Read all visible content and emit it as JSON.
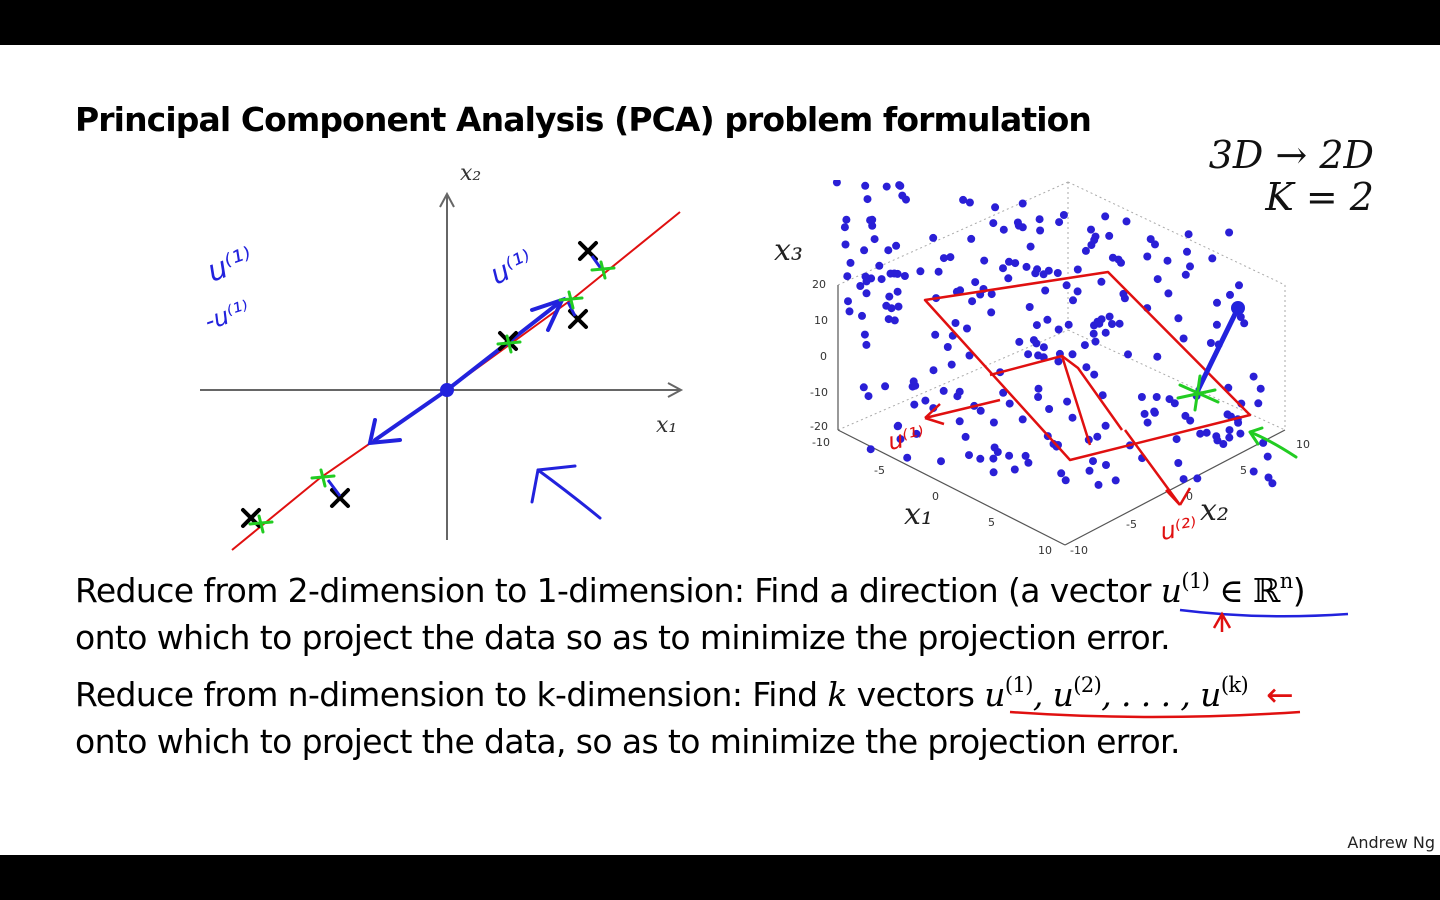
{
  "slide": {
    "title": "Principal Component Analysis (PCA) problem formulation",
    "math_top_right": [
      "3D → 2D",
      "K = 2"
    ],
    "left_plot": {
      "x_label": "x₁",
      "y_label": "x₂",
      "annotations": [
        "u⁽¹⁾",
        "-u⁽¹⁾",
        "u⁽¹⁾"
      ]
    },
    "right_plot": {
      "z_label": "x₃",
      "x_label": "x₁",
      "y_label": "x₂",
      "z_ticks": [
        "20",
        "10",
        "0",
        "-10",
        "-20"
      ],
      "x_ticks": [
        "-10",
        "-5",
        "0",
        "5",
        "10"
      ],
      "y_ticks": [
        "-10",
        "-5",
        "0",
        "5",
        "10"
      ],
      "annotations": [
        "u⁽¹⁾",
        "u⁽²⁾"
      ]
    },
    "line1": {
      "text": "Reduce from 2-dimension to 1-dimension: Find a direction (a vector ",
      "math_var": "u",
      "math_sup": "(1)",
      "math_rest": " ∈ ℝ",
      "math_rest_sup": "n",
      "close": ")"
    },
    "line2": "onto which to project the data so as to minimize the projection error.",
    "line3": {
      "text_a": "Reduce from n-dimension to k-dimension: Find ",
      "k": "k",
      "text_b": " vectors ",
      "u1": "u",
      "u1_sup": "(1)",
      "sep1": ", ",
      "u2": "u",
      "u2_sup": "(2)",
      "sep2": ", . . . , ",
      "uk": "u",
      "uk_sup": "(k)",
      "arrow": "←"
    },
    "line4": "onto which to project the data, so as to minimize the projection error.",
    "credit": "Andrew Ng"
  },
  "colors": {
    "ink_blue": "#2222dd",
    "ink_red": "#e01010",
    "ink_green": "#22cc22",
    "dot_blue": "#2a1fd6"
  }
}
